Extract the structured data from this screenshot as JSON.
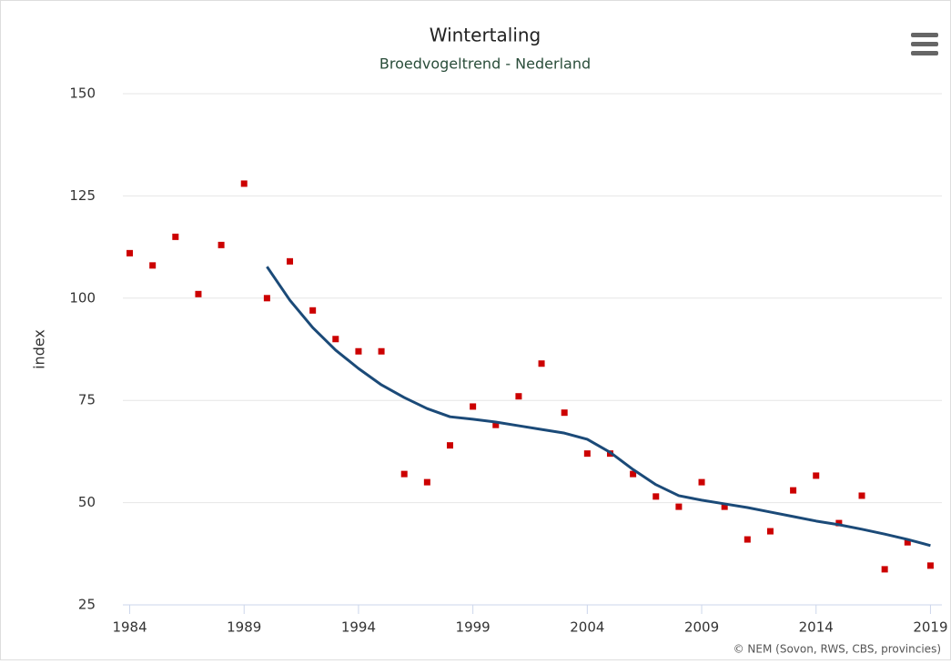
{
  "chart_data": {
    "type": "scatter",
    "title": "Wintertaling",
    "subtitle": "Broedvogeltrend - Nederland",
    "ylabel": "index",
    "credits": "© NEM (Sovon, RWS, CBS, provincies)",
    "x": [
      1984,
      1985,
      1986,
      1987,
      1988,
      1989,
      1990,
      1991,
      1992,
      1993,
      1994,
      1995,
      1996,
      1997,
      1998,
      1999,
      2000,
      2001,
      2002,
      2003,
      2004,
      2005,
      2006,
      2007,
      2008,
      2009,
      2010,
      2011,
      2012,
      2013,
      2014,
      2015,
      2016,
      2017,
      2018,
      2019
    ],
    "series": [
      {
        "type": "scatter",
        "color": "#cc0000",
        "values": [
          111,
          108,
          115,
          101,
          113,
          128,
          100,
          109,
          97,
          90,
          87,
          87,
          57,
          55,
          64,
          73.5,
          69,
          76,
          84,
          72,
          62,
          62,
          57,
          51.5,
          49,
          55,
          49,
          41,
          43,
          53,
          56.6,
          45,
          51.7,
          33.7,
          40.3,
          34.6
        ]
      },
      {
        "type": "line",
        "color": "#1b4a78",
        "values": [
          null,
          null,
          null,
          null,
          null,
          null,
          107.7,
          99.5,
          92.8,
          87.3,
          82.8,
          78.8,
          75.7,
          73,
          71,
          70.4,
          69.7,
          68.8,
          67.9,
          67,
          65.5,
          62.3,
          58.1,
          54.4,
          51.7,
          50.6,
          49.7,
          48.8,
          47.7,
          46.6,
          45.5,
          44.6,
          43.5,
          42.3,
          41,
          39.5
        ]
      }
    ],
    "xlim": [
      1983.7,
      2019.5
    ],
    "xticks": [
      1984,
      1989,
      1994,
      1999,
      2004,
      2009,
      2014,
      2019
    ],
    "ylim": [
      25,
      150
    ],
    "yticks": [
      25,
      50,
      75,
      100,
      125,
      150
    ],
    "grid": true
  }
}
